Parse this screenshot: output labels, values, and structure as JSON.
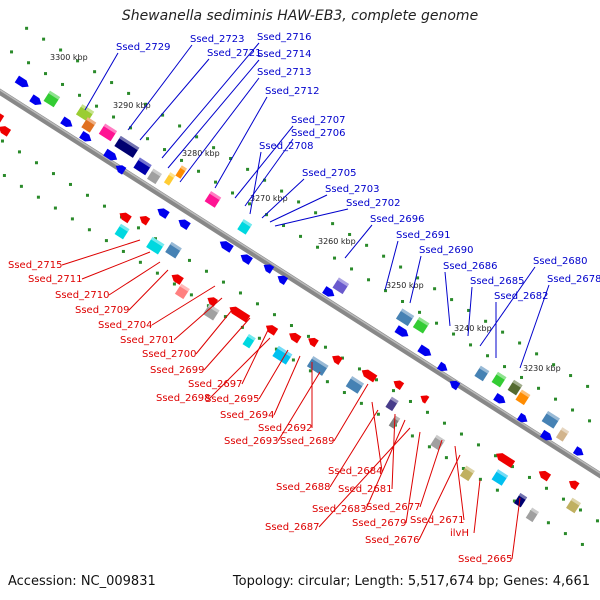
{
  "title": "Shewanella sediminis HAW-EB3, complete genome",
  "footer": {
    "accession": "Accession: NC_009831",
    "summary": "Topology: circular; Length: 5,517,674 bp; Genes: 4,661"
  },
  "colors": {
    "forward_label": "#0000cc",
    "reverse_label": "#dd0000",
    "backbone": "#888888",
    "tick": "#2a8a2a"
  },
  "kbp_ticks": [
    "3300 kbp",
    "3290 kbp",
    "3280 kbp",
    "3270 kbp",
    "3260 kbp",
    "3250 kbp",
    "3240 kbp",
    "3230 kbp"
  ],
  "forward_labels": [
    "Ssed_2729",
    "Ssed_2723",
    "Ssed_2721",
    "Ssed_2716",
    "Ssed_2714",
    "Ssed_2713",
    "Ssed_2712",
    "Ssed_2707",
    "Ssed_2706",
    "Ssed_2708",
    "Ssed_2705",
    "Ssed_2703",
    "Ssed_2702",
    "Ssed_2696",
    "Ssed_2691",
    "Ssed_2690",
    "Ssed_2686",
    "Ssed_2685",
    "Ssed_2680",
    "Ssed_2682",
    "Ssed_2678"
  ],
  "reverse_labels": [
    "Ssed_2715",
    "Ssed_2711",
    "Ssed_2710",
    "Ssed_2709",
    "Ssed_2704",
    "Ssed_2701",
    "Ssed_2700",
    "Ssed_2699",
    "Ssed_2697",
    "Ssed_2698",
    "Ssed_2695",
    "Ssed_2694",
    "Ssed_2692",
    "Ssed_2693",
    "Ssed_2689",
    "Ssed_2684",
    "Ssed_2688",
    "Ssed_2681",
    "Ssed_2683",
    "Ssed_2687",
    "Ssed_2679",
    "Ssed_2677",
    "Ssed_2671",
    "Ssed_2676",
    "ilvH",
    "Ssed_2665"
  ]
}
